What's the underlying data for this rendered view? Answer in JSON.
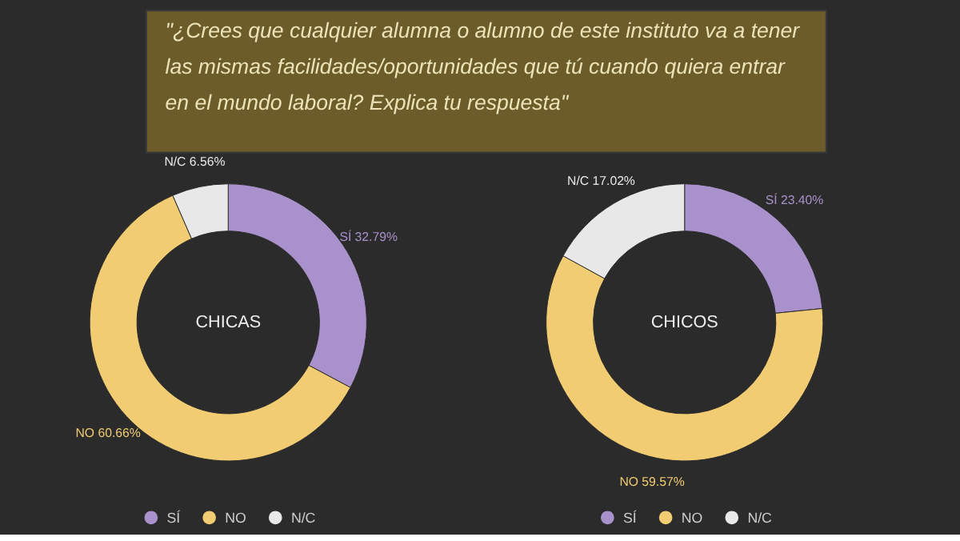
{
  "chart_data": [
    {
      "type": "donut",
      "title": "CHICAS",
      "annotations": [
        "\"¿Crees que cualquier alumna o alumno de este instituto va a tener\nlas mismas facilidades/oportunidades que tú cuando quiera entrar\nen el mundo laboral? Explica tu respuesta\""
      ],
      "categories": [
        "SÍ",
        "NO",
        "N/C"
      ],
      "values": [
        32.79,
        60.66,
        6.56
      ],
      "colors": [
        "#a992cc",
        "#f2cc72",
        "#e8e8e8"
      ],
      "value_labels": [
        "SÍ 32.79%",
        "NO 60.66%",
        "N/C 6.56%"
      ],
      "legend": "bottom"
    },
    {
      "type": "donut",
      "title": "CHICOS",
      "categories": [
        "SÍ",
        "NO",
        "N/C"
      ],
      "values": [
        23.4,
        59.57,
        17.02
      ],
      "colors": [
        "#a992cc",
        "#f2cc72",
        "#e8e8e8"
      ],
      "value_labels": [
        "SÍ 23.40%",
        "NO 59.57%",
        "N/C 17.02%"
      ],
      "legend": "bottom"
    }
  ]
}
